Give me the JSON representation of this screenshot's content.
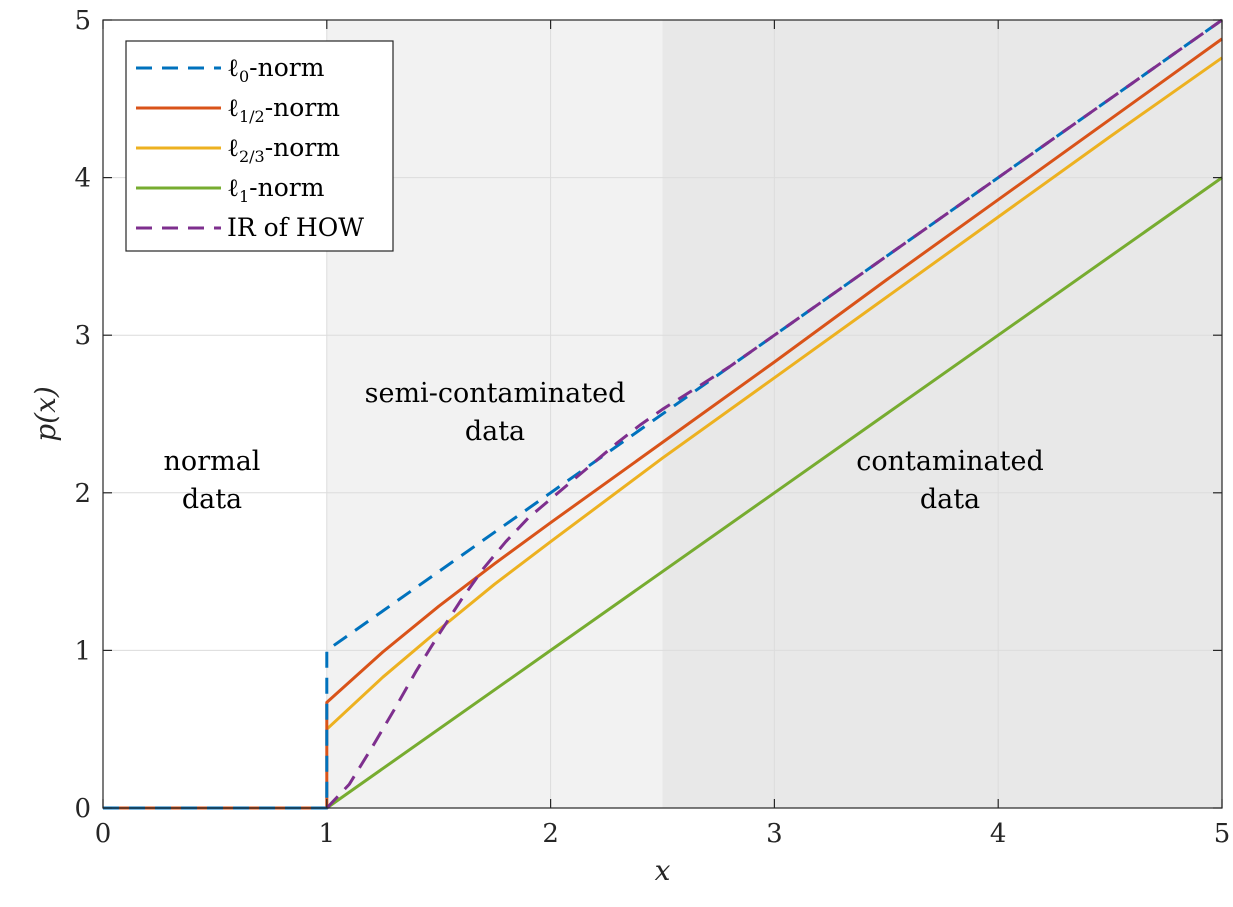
{
  "chart_data": {
    "type": "line",
    "xlabel": "x",
    "ylabel": "p(x)",
    "xlim": [
      0,
      5
    ],
    "ylim": [
      0,
      5
    ],
    "x_ticks": [
      "0",
      "1",
      "2",
      "3",
      "4",
      "5"
    ],
    "y_ticks": [
      "0",
      "1",
      "2",
      "3",
      "4",
      "5"
    ],
    "grid": true,
    "legend_placement": "top-left",
    "regions": [
      {
        "x_range": [
          1,
          2.5
        ],
        "shade": "#f2f2f2",
        "label_lines": [
          "semi-contaminated",
          "data"
        ]
      },
      {
        "x_range": [
          2.5,
          5
        ],
        "shade": "#e8e8e8",
        "label_lines": [
          "contaminated",
          "data"
        ]
      }
    ],
    "normal_region_label_lines": [
      "normal",
      "data"
    ],
    "series": [
      {
        "name": "ℓ0-norm",
        "name_base": "ℓ",
        "name_sub": "0",
        "name_suffix": "-norm",
        "color": "#0072bd",
        "style": "dashed",
        "points": [
          [
            0,
            0
          ],
          [
            1,
            0
          ],
          [
            1,
            1
          ],
          [
            2,
            2
          ],
          [
            3,
            3
          ],
          [
            4,
            4
          ],
          [
            5,
            5
          ]
        ]
      },
      {
        "name": "ℓ1/2-norm",
        "name_base": "ℓ",
        "name_sub": "1/2",
        "name_suffix": "-norm",
        "color": "#d95319",
        "style": "solid",
        "points": [
          [
            0,
            0
          ],
          [
            1,
            0
          ],
          [
            1,
            0.67
          ],
          [
            1.25,
            0.99
          ],
          [
            1.5,
            1.28
          ],
          [
            1.75,
            1.55
          ],
          [
            2,
            1.81
          ],
          [
            2.5,
            2.32
          ],
          [
            3,
            2.83
          ],
          [
            3.5,
            3.35
          ],
          [
            4,
            3.86
          ],
          [
            4.5,
            4.37
          ],
          [
            5,
            4.88
          ]
        ]
      },
      {
        "name": "ℓ2/3-norm",
        "name_base": "ℓ",
        "name_sub": "2/3",
        "name_suffix": "-norm",
        "color": "#edb120",
        "style": "solid",
        "points": [
          [
            1,
            0.5
          ],
          [
            1.25,
            0.83
          ],
          [
            1.5,
            1.13
          ],
          [
            1.75,
            1.42
          ],
          [
            2,
            1.69
          ],
          [
            2.5,
            2.22
          ],
          [
            3,
            2.73
          ],
          [
            3.5,
            3.24
          ],
          [
            4,
            3.75
          ],
          [
            4.5,
            4.26
          ],
          [
            5,
            4.76
          ]
        ]
      },
      {
        "name": "ℓ1-norm",
        "name_base": "ℓ",
        "name_sub": "1",
        "name_suffix": "-norm",
        "color": "#77ac30",
        "style": "solid",
        "points": [
          [
            1,
            0
          ],
          [
            2,
            1
          ],
          [
            3,
            2
          ],
          [
            4,
            3
          ],
          [
            5,
            4
          ]
        ]
      },
      {
        "name": "IR of HOW",
        "name_base": "IR of HOW",
        "name_sub": "",
        "name_suffix": "",
        "color": "#7e2f8e",
        "style": "dashed",
        "points": [
          [
            1,
            0
          ],
          [
            1.1,
            0.15
          ],
          [
            1.2,
            0.38
          ],
          [
            1.3,
            0.62
          ],
          [
            1.4,
            0.87
          ],
          [
            1.5,
            1.1
          ],
          [
            1.6,
            1.32
          ],
          [
            1.7,
            1.52
          ],
          [
            1.8,
            1.69
          ],
          [
            1.9,
            1.84
          ],
          [
            2,
            1.96
          ],
          [
            2.1,
            2.08
          ],
          [
            2.2,
            2.2
          ],
          [
            2.3,
            2.32
          ],
          [
            2.4,
            2.43
          ],
          [
            2.5,
            2.53
          ],
          [
            2.6,
            2.62
          ],
          [
            2.8,
            2.8
          ],
          [
            3,
            3
          ],
          [
            4,
            4
          ],
          [
            5,
            5
          ]
        ]
      }
    ]
  }
}
